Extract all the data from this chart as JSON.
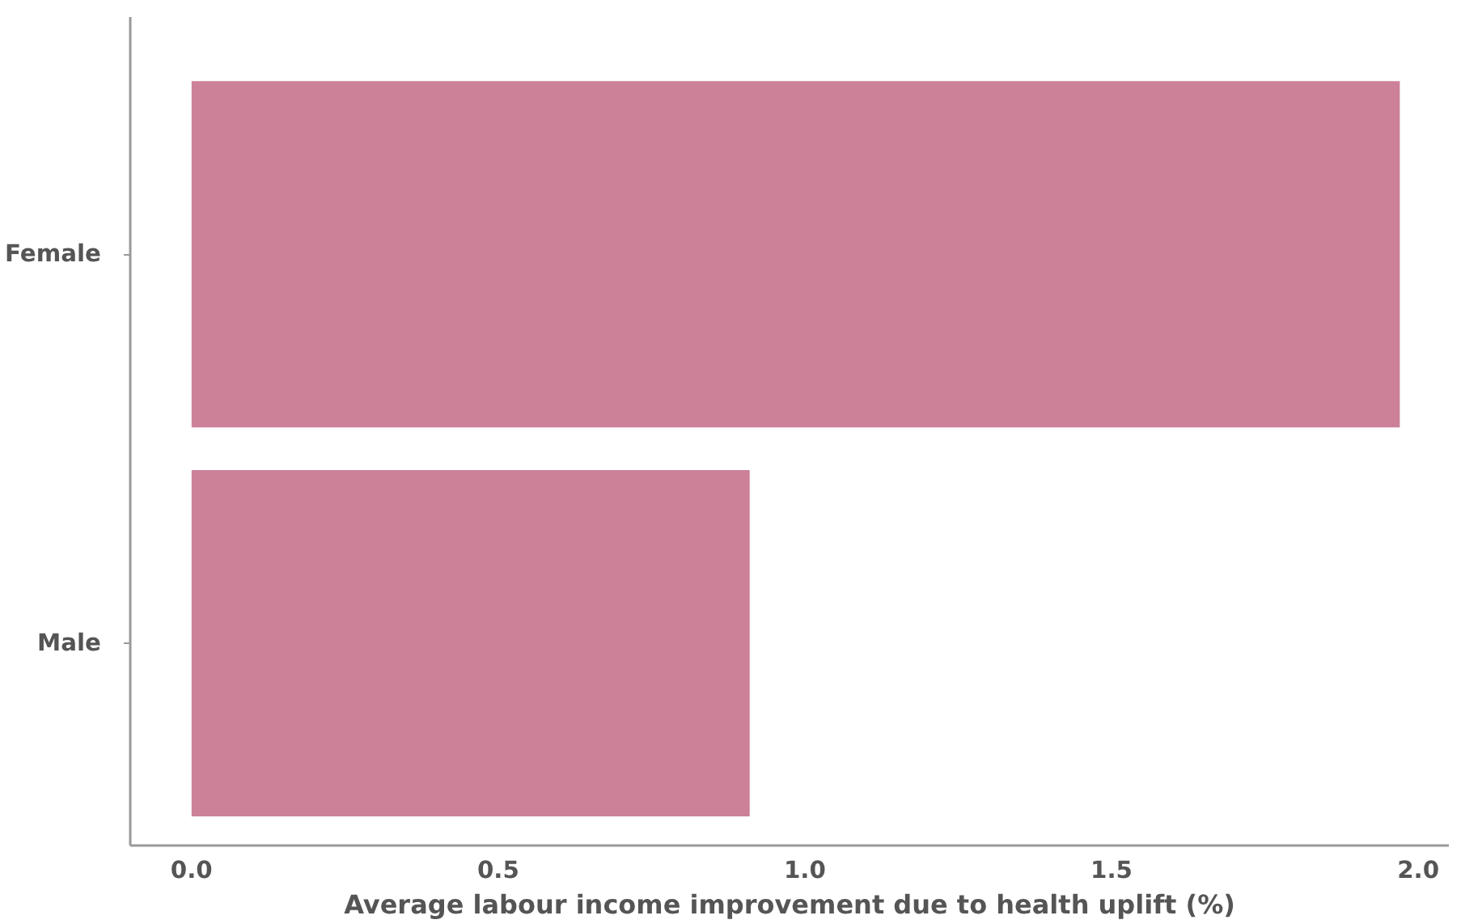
{
  "chart_data": {
    "type": "bar",
    "orientation": "horizontal",
    "xlabel": "Average labour income improvement due to health uplift (%)",
    "categories": [
      "Female",
      "Male"
    ],
    "values": [
      1.97,
      0.91
    ],
    "color": "#cc8199",
    "xlim": [
      -0.1,
      2.05
    ],
    "xticks": [
      {
        "value": 0,
        "label": "0.0"
      },
      0.5,
      {
        "value": 1,
        "label": "1.0"
      },
      1.5,
      {
        "value": 2,
        "label": "2.0"
      }
    ],
    "grid": false
  }
}
